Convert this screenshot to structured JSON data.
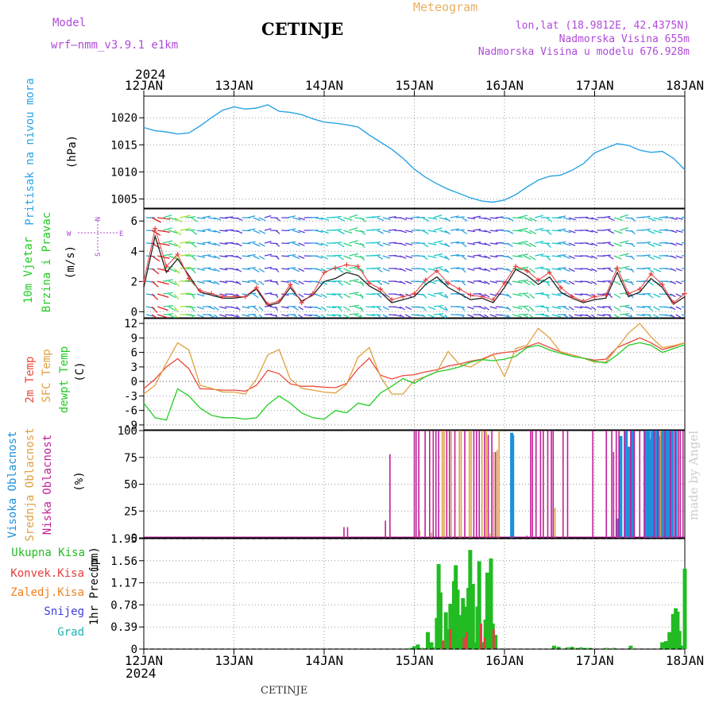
{
  "header": {
    "model_label": "Model",
    "model_name": "wrf—nmm_v3.9.1  e1km",
    "station": "CETINJE",
    "meteogram": "Meteogram",
    "lonlat": "lon,lat (18.9812E, 42.4375N)",
    "elevation": "Nadmorska Visina 655m",
    "model_elevation": "Nadmorska Visina u modelu 676.928m",
    "year_top": "2024",
    "year_bottom": "2024",
    "footer_station": "CETINJE",
    "credit": "made by Angel"
  },
  "colors": {
    "pressure": "#2aa4e6",
    "wind": "#222222",
    "gust": "#e83c3c",
    "temp2m": "#e8483c",
    "sfc": "#e0a040",
    "dewpt": "#22cc22",
    "high_cloud": "#1e90dc",
    "mid_cloud": "#e0a040",
    "low_cloud": "#c0209a",
    "total_precip": "#22bb22",
    "conv_precip": "#e04040",
    "header_purple": "#b04ad8",
    "header_orange": "#e8b060"
  },
  "chart_data": [
    {
      "panel": "pressure",
      "type": "line",
      "ylabel": [
        "Pritisak na nivou mora",
        "(hPa)"
      ],
      "y_ticks": [
        1005,
        1010,
        1015,
        1020
      ],
      "ylim": [
        1003.3,
        1024
      ],
      "x_ticks": [
        "12JAN",
        "13JAN",
        "14JAN",
        "15JAN",
        "16JAN",
        "17JAN",
        "18JAN"
      ],
      "x_days": [
        0,
        0.125,
        0.25,
        0.375,
        0.5,
        0.625,
        0.75,
        0.875,
        1,
        1.125,
        1.25,
        1.375,
        1.5,
        1.625,
        1.75,
        1.875,
        2,
        2.125,
        2.25,
        2.375,
        2.5,
        2.625,
        2.75,
        2.875,
        3,
        3.125,
        3.25,
        3.375,
        3.5,
        3.625,
        3.75,
        3.875,
        4,
        4.125,
        4.25,
        4.375,
        4.5,
        4.625,
        4.75,
        4.875,
        5,
        5.125,
        5.25,
        5.375,
        5.5,
        5.625,
        5.75,
        5.875,
        6
      ],
      "values": [
        1018.2,
        1017.6,
        1017.4,
        1017.0,
        1017.2,
        1018.5,
        1020.0,
        1021.4,
        1022.0,
        1021.6,
        1021.8,
        1022.4,
        1021.2,
        1021.0,
        1020.6,
        1019.8,
        1019.2,
        1019.0,
        1018.7,
        1018.3,
        1016.8,
        1015.5,
        1014.2,
        1012.5,
        1010.5,
        1009.0,
        1007.8,
        1006.8,
        1006.0,
        1005.2,
        1004.6,
        1004.4,
        1004.8,
        1005.8,
        1007.2,
        1008.5,
        1009.2,
        1009.4,
        1010.3,
        1011.5,
        1013.5,
        1014.4,
        1015.2,
        1014.9,
        1014.0,
        1013.6,
        1013.8,
        1012.5,
        1010.4
      ]
    },
    {
      "panel": "wind",
      "type": "line",
      "ylabel": [
        "10m Vjetar",
        "Brzina i Pravac",
        "(m/s)"
      ],
      "direction_legend": [
        "N",
        "W",
        "E",
        "S"
      ],
      "y_ticks": [
        0,
        2,
        4,
        6
      ],
      "ylim": [
        -0.4,
        6.8
      ],
      "x_days": [
        0,
        0.125,
        0.25,
        0.375,
        0.5,
        0.625,
        0.75,
        0.875,
        1,
        1.125,
        1.25,
        1.375,
        1.5,
        1.625,
        1.75,
        1.875,
        2,
        2.125,
        2.25,
        2.375,
        2.5,
        2.625,
        2.75,
        2.875,
        3,
        3.125,
        3.25,
        3.375,
        3.5,
        3.625,
        3.75,
        3.875,
        4,
        4.125,
        4.25,
        4.375,
        4.5,
        4.625,
        4.75,
        4.875,
        5,
        5.125,
        5.25,
        5.375,
        5.5,
        5.625,
        5.75,
        5.875,
        6
      ],
      "series": [
        {
          "name": "speed",
          "values": [
            1.6,
            5.0,
            2.6,
            3.5,
            2.4,
            1.3,
            1.1,
            0.9,
            0.9,
            1.0,
            1.5,
            0.4,
            0.6,
            1.6,
            0.7,
            1.1,
            2.0,
            2.2,
            2.6,
            2.4,
            1.7,
            1.3,
            0.6,
            0.8,
            1.0,
            1.8,
            2.3,
            1.6,
            1.2,
            0.8,
            0.9,
            0.6,
            1.6,
            2.8,
            2.4,
            1.8,
            2.3,
            1.3,
            0.9,
            0.6,
            0.8,
            0.9,
            2.6,
            1.0,
            1.3,
            2.2,
            1.6,
            0.5,
            1.0
          ]
        },
        {
          "name": "gust",
          "values": [
            2.0,
            5.5,
            3.0,
            3.8,
            2.2,
            1.4,
            1.2,
            1.0,
            1.0,
            1.0,
            1.6,
            0.5,
            0.7,
            1.8,
            0.6,
            1.2,
            2.6,
            2.9,
            3.1,
            3.0,
            1.9,
            1.5,
            0.8,
            1.0,
            1.2,
            2.1,
            2.7,
            1.9,
            1.5,
            1.1,
            1.0,
            0.8,
            1.9,
            3.0,
            2.7,
            2.1,
            2.6,
            1.6,
            1.0,
            0.7,
            1.0,
            1.1,
            2.9,
            1.2,
            1.5,
            2.5,
            1.8,
            0.6,
            1.2
          ]
        }
      ]
    },
    {
      "panel": "temperature",
      "type": "line",
      "ylabel": [
        "2m Temp",
        "SFC Temp",
        "dewpt Temp",
        "(C)"
      ],
      "y_ticks": [
        -9,
        -6,
        -3,
        0,
        3,
        6,
        9,
        12
      ],
      "ylim": [
        -10,
        13
      ],
      "x_days": [
        0,
        0.125,
        0.25,
        0.375,
        0.5,
        0.625,
        0.75,
        0.875,
        1,
        1.125,
        1.25,
        1.375,
        1.5,
        1.625,
        1.75,
        1.875,
        2,
        2.125,
        2.25,
        2.375,
        2.5,
        2.625,
        2.75,
        2.875,
        3,
        3.125,
        3.25,
        3.375,
        3.5,
        3.625,
        3.75,
        3.875,
        4,
        4.125,
        4.25,
        4.375,
        4.5,
        4.625,
        4.75,
        4.875,
        5,
        5.125,
        5.25,
        5.375,
        5.5,
        5.625,
        5.75,
        5.875,
        6
      ],
      "series": [
        {
          "name": "2m Temp",
          "values": [
            -1.5,
            0.5,
            3.0,
            4.7,
            2.6,
            -1.5,
            -1.6,
            -1.8,
            -1.8,
            -2.0,
            -0.8,
            2.3,
            1.6,
            -0.5,
            -1.0,
            -1.0,
            -1.2,
            -1.3,
            -0.4,
            2.6,
            4.8,
            1.3,
            0.5,
            1.2,
            1.4,
            2.0,
            2.4,
            3.2,
            3.6,
            4.2,
            4.6,
            5.6,
            6.0,
            6.2,
            7.2,
            8.0,
            7.0,
            6.1,
            5.5,
            4.8,
            4.4,
            4.6,
            7.0,
            8.0,
            9.0,
            8.0,
            6.6,
            7.2,
            8.0
          ]
        },
        {
          "name": "SFC Temp",
          "values": [
            -2.6,
            -0.8,
            3.8,
            8.0,
            6.5,
            -0.8,
            -1.4,
            -2.2,
            -2.2,
            -2.6,
            0.5,
            5.5,
            6.6,
            0.5,
            -1.4,
            -1.8,
            -2.2,
            -2.4,
            -0.6,
            5.0,
            7.0,
            1.0,
            -2.6,
            -2.6,
            0.2,
            1.0,
            2.0,
            6.2,
            3.5,
            3.0,
            4.4,
            5.5,
            1.0,
            6.8,
            7.5,
            11.0,
            9.0,
            6.0,
            5.5,
            4.8,
            4.0,
            4.0,
            7.0,
            10.0,
            12.0,
            9.2,
            7.0,
            7.4,
            8.0
          ]
        },
        {
          "name": "dewpt Temp",
          "values": [
            -4.5,
            -7.5,
            -8.0,
            -1.5,
            -3.0,
            -5.5,
            -7.0,
            -7.5,
            -7.5,
            -7.8,
            -7.5,
            -4.8,
            -3.0,
            -4.5,
            -6.5,
            -7.5,
            -7.8,
            -6.0,
            -6.5,
            -4.5,
            -5.0,
            -2.4,
            -1.0,
            0.6,
            -0.4,
            1.0,
            2.0,
            2.4,
            3.0,
            4.0,
            4.5,
            4.3,
            4.6,
            5.2,
            7.0,
            7.5,
            6.5,
            5.8,
            5.2,
            4.8,
            4.2,
            3.8,
            5.5,
            7.5,
            8.0,
            7.5,
            6.0,
            6.8,
            7.6
          ]
        }
      ]
    },
    {
      "panel": "cloud",
      "type": "bar",
      "ylabel": [
        "Visoka Oblacnost",
        "Srednja Oblacnost",
        "Niska Oblacnost",
        "(%)"
      ],
      "y_ticks": [
        0,
        25,
        50,
        75,
        100
      ],
      "ylim": [
        0,
        100
      ],
      "series": [
        {
          "name": "Visoka Oblacnost",
          "x_days": [
            4.08,
            4.09,
            5.25,
            5.29,
            5.35,
            5.38,
            5.42,
            5.57,
            5.6,
            5.62,
            5.64,
            5.66,
            5.68,
            5.7,
            5.73,
            5.75,
            5.77,
            5.79,
            5.81,
            5.84,
            5.86,
            5.9
          ],
          "values": [
            98,
            96,
            18,
            95,
            100,
            85,
            100,
            100,
            100,
            92,
            100,
            100,
            100,
            100,
            95,
            100,
            100,
            100,
            100,
            100,
            100,
            100
          ]
        },
        {
          "name": "Srednja Oblacnost",
          "x_days": [
            3.06,
            3.19,
            3.31,
            3.33,
            3.41,
            3.5,
            3.52,
            3.61,
            3.63,
            3.75,
            3.8,
            3.84,
            3.88,
            3.92,
            3.94,
            4.56,
            5.73
          ],
          "values": [
            7,
            5,
            100,
            100,
            100,
            100,
            100,
            100,
            100,
            100,
            100,
            4,
            80,
            82,
            100,
            28,
            100
          ]
        },
        {
          "name": "Niska Oblacnost",
          "x_days": [
            2.22,
            2.26,
            2.68,
            2.73,
            3.0,
            3.02,
            3.05,
            3.12,
            3.17,
            3.21,
            3.24,
            3.27,
            3.36,
            3.39,
            3.45,
            3.56,
            3.66,
            3.69,
            3.72,
            3.78,
            3.82,
            3.86,
            3.9,
            4.25,
            4.29,
            4.31,
            4.35,
            4.4,
            4.43,
            4.48,
            4.52,
            4.54,
            4.65,
            4.7,
            4.98,
            5.13,
            5.19,
            5.21,
            5.24,
            5.27,
            5.33,
            5.4,
            5.44,
            5.5,
            5.55,
            5.66,
            5.7,
            5.78,
            5.84,
            5.89,
            5.93,
            5.95,
            5.98
          ],
          "values": [
            10,
            10,
            16,
            78,
            100,
            100,
            100,
            100,
            100,
            100,
            100,
            100,
            100,
            100,
            100,
            100,
            100,
            100,
            100,
            100,
            96,
            100,
            80,
            2,
            100,
            100,
            100,
            100,
            100,
            100,
            100,
            100,
            100,
            100,
            100,
            100,
            100,
            80,
            100,
            100,
            100,
            100,
            100,
            100,
            100,
            100,
            100,
            100,
            100,
            100,
            100,
            100,
            100
          ]
        }
      ]
    },
    {
      "panel": "precip",
      "type": "bar",
      "ylabel": [
        "1hr Precip",
        "(mm)"
      ],
      "y_ticks": [
        0,
        0.39,
        0.78,
        1.17,
        1.56,
        1.95
      ],
      "y_tick_labels": [
        "0",
        "0.39",
        "0.78",
        "1.17",
        "1.56",
        "1.95"
      ],
      "ylim": [
        0,
        1.95
      ],
      "legend": [
        "Ukupna Kisa",
        "Konvek.Kisa",
        "Zaledj.Kisa",
        "Snijeg",
        "Grad"
      ],
      "series": [
        {
          "name": "Ukupna Kisa",
          "x_days": [
            2.96,
            3.0,
            3.04,
            3.09,
            3.15,
            3.19,
            3.21,
            3.25,
            3.27,
            3.29,
            3.31,
            3.35,
            3.38,
            3.4,
            3.42,
            3.44,
            3.46,
            3.48,
            3.5,
            3.52,
            3.54,
            3.56,
            3.58,
            3.6,
            3.62,
            3.65,
            3.67,
            3.7,
            3.72,
            3.75,
            3.77,
            3.79,
            3.81,
            3.83,
            3.85,
            3.87,
            3.9,
            4.55,
            4.6,
            4.7,
            4.75,
            4.8,
            4.85,
            4.9,
            4.95,
            5.13,
            5.21,
            5.4,
            5.75,
            5.77,
            5.79,
            5.81,
            5.83,
            5.85,
            5.87,
            5.9,
            5.92,
            5.94,
            5.97,
            6.0
          ],
          "values": [
            0.02,
            0.05,
            0.08,
            0.02,
            0.3,
            0.12,
            0.03,
            0.55,
            1.5,
            1.0,
            0.04,
            0.65,
            0.35,
            0.8,
            0.6,
            1.2,
            1.48,
            1.05,
            0.6,
            0.4,
            0.9,
            0.75,
            0.05,
            1.08,
            1.75,
            1.15,
            0.12,
            0.75,
            1.55,
            0.05,
            0.12,
            0.52,
            1.35,
            0.55,
            1.6,
            0.45,
            0.25,
            0.06,
            0.04,
            0.03,
            0.04,
            0.02,
            0.03,
            0.02,
            0.02,
            0.02,
            0.02,
            0.06,
            0.12,
            0.09,
            0.14,
            0.1,
            0.3,
            0.18,
            0.62,
            0.72,
            0.66,
            0.32,
            0.06,
            1.42
          ]
        },
        {
          "name": "Konvek.Kisa",
          "x_days": [
            3.32,
            3.4,
            3.55,
            3.58,
            3.74,
            3.78,
            3.88
          ],
          "values": [
            0.15,
            0.35,
            0.2,
            0.3,
            0.45,
            0.2,
            0.35
          ]
        }
      ]
    }
  ]
}
